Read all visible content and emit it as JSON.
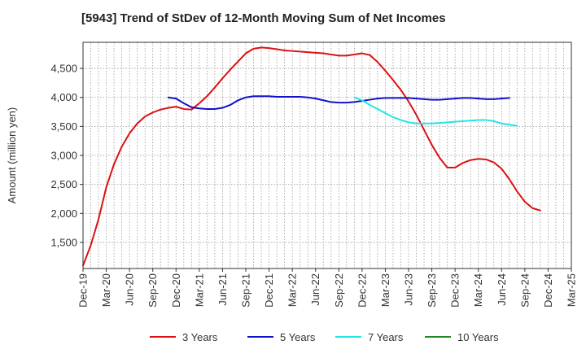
{
  "chart_data": {
    "type": "line",
    "title": "[5943]  Trend of StDev of 12-Month Moving Sum of Net Incomes",
    "ylabel": "Amount (million yen)",
    "xlabel": "",
    "ylim": [
      1050,
      4950
    ],
    "yticks": [
      1500,
      2000,
      2500,
      3000,
      3500,
      4000,
      4500
    ],
    "ytick_labels": [
      "1,500",
      "2,000",
      "2,500",
      "3,000",
      "3,500",
      "4,000",
      "4,500"
    ],
    "xticks": [
      "Dec-19",
      "Mar-20",
      "Jun-20",
      "Sep-20",
      "Dec-20",
      "Mar-21",
      "Jun-21",
      "Sep-21",
      "Dec-21",
      "Mar-22",
      "Jun-22",
      "Sep-22",
      "Dec-22",
      "Mar-23",
      "Jun-23",
      "Sep-23",
      "Dec-23",
      "Mar-24",
      "Jun-24",
      "Sep-24",
      "Dec-24",
      "Mar-25"
    ],
    "grid": true,
    "legend_position": "bottom",
    "series": [
      {
        "name": "3 Years",
        "color": "#dd1111",
        "start": "Dec-19",
        "values": [
          1100,
          1450,
          1900,
          2450,
          2850,
          3150,
          3380,
          3550,
          3670,
          3740,
          3790,
          3820,
          3840,
          3800,
          3790,
          3900,
          4020,
          4170,
          4330,
          4480,
          4620,
          4760,
          4840,
          4860,
          4850,
          4830,
          4810,
          4800,
          4790,
          4780,
          4770,
          4760,
          4740,
          4720,
          4720,
          4740,
          4760,
          4730,
          4610,
          4460,
          4300,
          4130,
          3930,
          3700,
          3440,
          3180,
          2960,
          2790,
          2790,
          2870,
          2920,
          2940,
          2930,
          2880,
          2770,
          2590,
          2380,
          2200,
          2090,
          2050
        ]
      },
      {
        "name": "5 Years",
        "color": "#1111cc",
        "start": "Nov-20",
        "values": [
          4000,
          3980,
          3900,
          3830,
          3810,
          3800,
          3800,
          3820,
          3870,
          3950,
          4000,
          4020,
          4020,
          4020,
          4010,
          4010,
          4010,
          4010,
          4000,
          3980,
          3950,
          3920,
          3910,
          3910,
          3920,
          3940,
          3960,
          3980,
          3990,
          3990,
          3990,
          3990,
          3980,
          3970,
          3960,
          3960,
          3970,
          3980,
          3990,
          3990,
          3980,
          3970,
          3970,
          3980,
          3990
        ]
      },
      {
        "name": "7 Years",
        "color": "#22e5e5",
        "start": "Nov-22",
        "values": [
          4000,
          3950,
          3870,
          3800,
          3730,
          3660,
          3610,
          3570,
          3550,
          3550,
          3550,
          3560,
          3570,
          3580,
          3590,
          3600,
          3610,
          3610,
          3590,
          3550,
          3530,
          3510
        ]
      },
      {
        "name": "10 Years",
        "color": "#228822",
        "start": "Dec-24",
        "values": []
      }
    ]
  }
}
